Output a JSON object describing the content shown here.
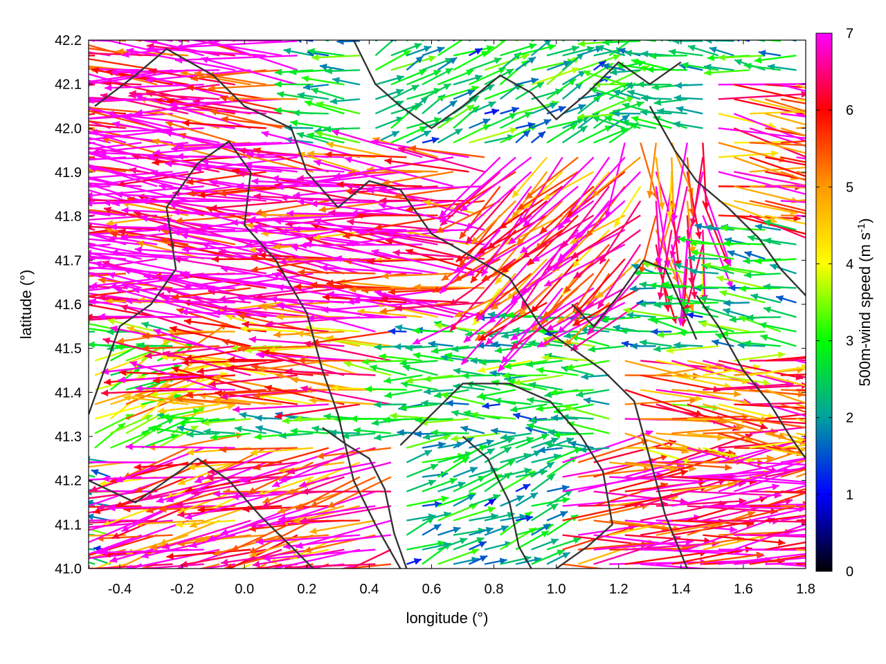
{
  "chart_data": {
    "type": "vector-field",
    "xlabel": "longitude (°)",
    "ylabel": "latitude (°)",
    "colorbar_label": "500m-wind speed (m s⁻¹)",
    "colorbar_label_main": "500m-wind speed (m s",
    "colorbar_label_sup": "-1",
    "colorbar_label_end": ")",
    "xlim": [
      -0.5,
      1.8
    ],
    "ylim": [
      41.0,
      42.2
    ],
    "clim": [
      0,
      7
    ],
    "x_ticks": [
      "-0.4",
      "-0.2",
      "0.0",
      "0.2",
      "0.4",
      "0.6",
      "0.8",
      "1.0",
      "1.2",
      "1.4",
      "1.6",
      "1.8"
    ],
    "y_ticks": [
      "41.0",
      "41.1",
      "41.2",
      "41.3",
      "41.4",
      "41.5",
      "41.6",
      "41.7",
      "41.8",
      "41.9",
      "42.0",
      "42.1",
      "42.2"
    ],
    "c_ticks": [
      "0",
      "1",
      "2",
      "3",
      "4",
      "5",
      "6",
      "7"
    ],
    "grid": "dotted",
    "colormap": [
      "#000000",
      "#0000ff",
      "#00a0a0",
      "#00ff00",
      "#ffff00",
      "#ff9900",
      "#ff0000",
      "#ff00ff"
    ],
    "contour_color": "#333333",
    "wind_regions": [
      {
        "x": [
          -0.5,
          0.2
        ],
        "y": [
          41.55,
          42.2
        ],
        "u": -5.8,
        "v": 0.6,
        "speed": 7.0
      },
      {
        "x": [
          0.2,
          0.8
        ],
        "y": [
          41.55,
          41.95
        ],
        "u": -5.0,
        "v": 0.4,
        "speed": 6.6
      },
      {
        "x": [
          0.8,
          1.3
        ],
        "y": [
          41.6,
          41.95
        ],
        "u": -2.6,
        "v": -2.8,
        "speed": 6.2
      },
      {
        "x": [
          1.2,
          1.5
        ],
        "y": [
          41.7,
          42.0
        ],
        "u": 0.2,
        "v": -4.5,
        "speed": 5.8
      },
      {
        "x": [
          1.5,
          1.8
        ],
        "y": [
          41.8,
          42.1
        ],
        "u": 4.5,
        "v": -0.8,
        "speed": 6.0
      },
      {
        "x": [
          0.4,
          1.2
        ],
        "y": [
          41.95,
          42.2
        ],
        "u": 0.8,
        "v": 0.5,
        "speed": 2.4
      },
      {
        "x": [
          -0.2,
          0.5
        ],
        "y": [
          41.35,
          41.55
        ],
        "u": -4.5,
        "v": 0.4,
        "speed": 5.6
      },
      {
        "x": [
          0.5,
          1.2
        ],
        "y": [
          41.3,
          41.55
        ],
        "u": -2.0,
        "v": 0.1,
        "speed": 2.6
      },
      {
        "x": [
          1.2,
          1.8
        ],
        "y": [
          41.25,
          41.5
        ],
        "u": 4.8,
        "v": -0.5,
        "speed": 5.5
      },
      {
        "x": [
          -0.5,
          -0.2
        ],
        "y": [
          41.25,
          41.5
        ],
        "u": 2.5,
        "v": 1.5,
        "speed": 4.0
      },
      {
        "x": [
          -0.4,
          0.5
        ],
        "y": [
          41.0,
          41.3
        ],
        "u": -4.8,
        "v": -1.4,
        "speed": 6.2
      },
      {
        "x": [
          0.5,
          1.0
        ],
        "y": [
          41.0,
          41.3
        ],
        "u": 0.6,
        "v": 0.3,
        "speed": 2.2
      },
      {
        "x": [
          1.0,
          1.8
        ],
        "y": [
          41.0,
          41.25
        ],
        "u": 5.8,
        "v": 0.8,
        "speed": 6.6
      }
    ],
    "contours": [
      [
        [
          -0.5,
          41.35
        ],
        [
          -0.4,
          41.55
        ],
        [
          -0.3,
          41.6
        ],
        [
          -0.22,
          41.68
        ],
        [
          -0.25,
          41.82
        ],
        [
          -0.15,
          41.92
        ],
        [
          -0.05,
          41.97
        ],
        [
          0.02,
          41.9
        ],
        [
          0.0,
          41.78
        ],
        [
          0.1,
          41.7
        ],
        [
          0.2,
          41.58
        ],
        [
          0.25,
          41.45
        ],
        [
          0.3,
          41.35
        ],
        [
          0.35,
          41.2
        ],
        [
          0.42,
          41.1
        ],
        [
          0.5,
          41.0
        ]
      ],
      [
        [
          -0.48,
          42.05
        ],
        [
          -0.35,
          42.12
        ],
        [
          -0.25,
          42.18
        ],
        [
          -0.1,
          42.12
        ],
        [
          0.0,
          42.05
        ],
        [
          0.15,
          42.0
        ],
        [
          0.2,
          41.9
        ],
        [
          0.3,
          41.82
        ],
        [
          0.4,
          41.88
        ],
        [
          0.5,
          41.86
        ],
        [
          0.6,
          41.76
        ],
        [
          0.7,
          41.72
        ],
        [
          0.85,
          41.66
        ],
        [
          0.95,
          41.55
        ],
        [
          1.05,
          41.5
        ],
        [
          1.15,
          41.45
        ],
        [
          1.25,
          41.38
        ],
        [
          1.3,
          41.25
        ],
        [
          1.35,
          41.12
        ],
        [
          1.42,
          41.0
        ]
      ],
      [
        [
          0.35,
          42.2
        ],
        [
          0.42,
          42.1
        ],
        [
          0.5,
          42.05
        ],
        [
          0.6,
          42.0
        ],
        [
          0.7,
          42.05
        ],
        [
          0.82,
          42.12
        ],
        [
          0.92,
          42.08
        ],
        [
          1.0,
          42.02
        ],
        [
          1.1,
          42.08
        ],
        [
          1.2,
          42.15
        ],
        [
          1.3,
          42.1
        ],
        [
          1.4,
          42.15
        ]
      ],
      [
        [
          -0.5,
          41.2
        ],
        [
          -0.35,
          41.15
        ],
        [
          -0.25,
          41.2
        ],
        [
          -0.15,
          41.25
        ],
        [
          -0.05,
          41.2
        ],
        [
          0.05,
          41.12
        ],
        [
          0.15,
          41.05
        ],
        [
          0.22,
          41.0
        ]
      ],
      [
        [
          0.5,
          41.28
        ],
        [
          0.6,
          41.35
        ],
        [
          0.7,
          41.42
        ],
        [
          0.85,
          41.42
        ],
        [
          0.98,
          41.38
        ],
        [
          1.08,
          41.3
        ],
        [
          1.15,
          41.22
        ],
        [
          1.18,
          41.1
        ],
        [
          1.1,
          41.05
        ],
        [
          1.0,
          41.0
        ]
      ],
      [
        [
          0.7,
          41.3
        ],
        [
          0.78,
          41.25
        ],
        [
          0.85,
          41.15
        ],
        [
          0.88,
          41.05
        ],
        [
          0.92,
          41.0
        ]
      ],
      [
        [
          1.3,
          42.05
        ],
        [
          1.38,
          41.95
        ],
        [
          1.45,
          41.88
        ],
        [
          1.55,
          41.82
        ],
        [
          1.65,
          41.75
        ],
        [
          1.72,
          41.68
        ],
        [
          1.8,
          41.62
        ]
      ],
      [
        [
          1.45,
          41.62
        ],
        [
          1.52,
          41.55
        ],
        [
          1.6,
          41.45
        ],
        [
          1.68,
          41.38
        ],
        [
          1.75,
          41.3
        ],
        [
          1.8,
          41.25
        ]
      ],
      [
        [
          0.25,
          41.32
        ],
        [
          0.33,
          41.28
        ],
        [
          0.4,
          41.25
        ],
        [
          0.45,
          41.18
        ],
        [
          0.48,
          41.08
        ],
        [
          0.52,
          41.0
        ]
      ],
      [
        [
          1.05,
          41.6
        ],
        [
          1.12,
          41.55
        ],
        [
          1.2,
          41.62
        ],
        [
          1.28,
          41.7
        ],
        [
          1.35,
          41.68
        ],
        [
          1.4,
          41.6
        ],
        [
          1.45,
          41.52
        ]
      ]
    ]
  }
}
